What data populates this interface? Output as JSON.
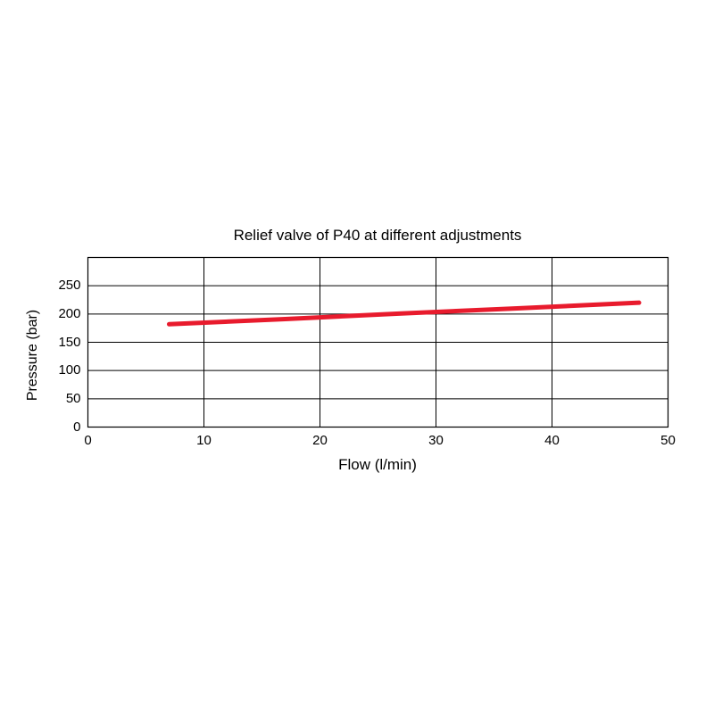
{
  "chart_data": {
    "type": "line",
    "title": "Relief valve of P40 at different adjustments",
    "xlabel": "Flow (l/min)",
    "ylabel": "Pressure (bar)",
    "xlim": [
      0,
      50
    ],
    "ylim": [
      0,
      300
    ],
    "xticks": [
      0,
      10,
      20,
      30,
      40,
      50
    ],
    "yticks": [
      0,
      50,
      100,
      150,
      200,
      250
    ],
    "grid": true,
    "legend_position": "none",
    "grid_color": "#000000",
    "border_color": "#000000",
    "series": [
      {
        "name": "P40",
        "color": "#e81b2d",
        "line_width": 5,
        "points": [
          [
            7,
            182
          ],
          [
            17,
            191
          ],
          [
            27,
            201
          ],
          [
            37,
            210
          ],
          [
            47.5,
            220
          ]
        ]
      }
    ]
  }
}
